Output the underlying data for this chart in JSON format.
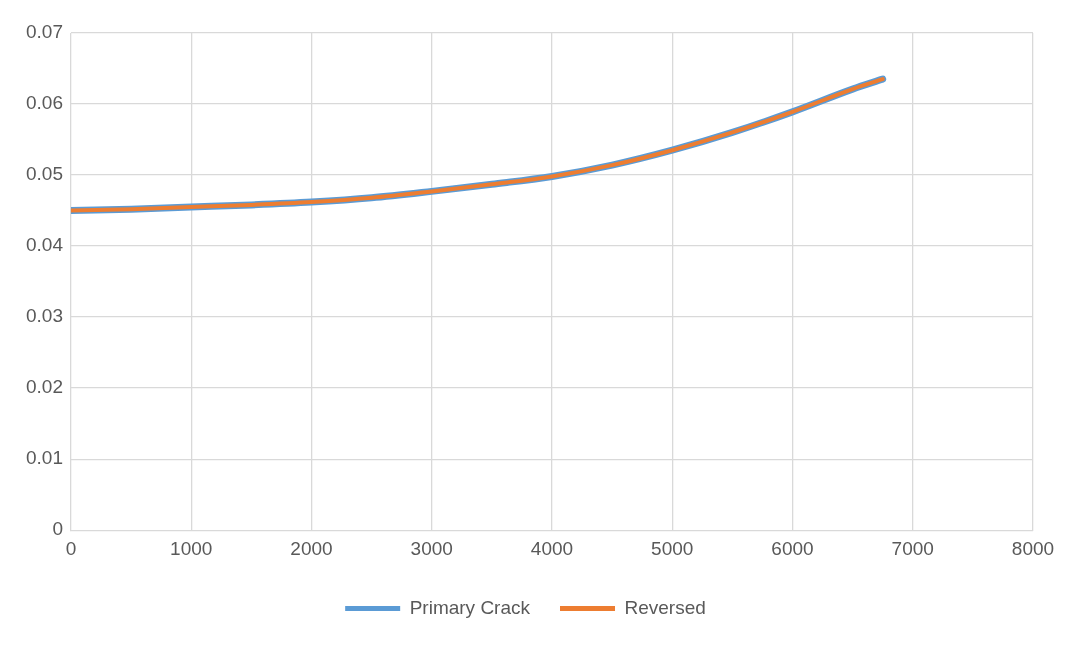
{
  "chart_data": {
    "type": "line",
    "x": [
      0,
      500,
      1000,
      1500,
      2000,
      2500,
      3000,
      3500,
      4000,
      4500,
      5000,
      5500,
      6000,
      6500,
      6750
    ],
    "series": [
      {
        "name": "Primary Crack",
        "color": "#5b9bd5",
        "values": [
          0.045,
          0.0452,
          0.0455,
          0.0458,
          0.0462,
          0.0468,
          0.0477,
          0.0487,
          0.0498,
          0.0514,
          0.0535,
          0.056,
          0.0589,
          0.0621,
          0.0635
        ]
      },
      {
        "name": "Reversed",
        "color": "#ed7d31",
        "values": [
          0.045,
          0.0452,
          0.0455,
          0.0458,
          0.0462,
          0.0468,
          0.0477,
          0.0487,
          0.0498,
          0.0514,
          0.0535,
          0.056,
          0.0589,
          0.0621,
          0.0635
        ]
      }
    ],
    "xlim": [
      0,
      8000
    ],
    "xticks": [
      0,
      1000,
      2000,
      3000,
      4000,
      5000,
      6000,
      7000,
      8000
    ],
    "ylim": [
      0,
      0.07
    ],
    "yticks": [
      0,
      0.01,
      0.02,
      0.03,
      0.04,
      0.05,
      0.06,
      0.07
    ],
    "grid": true,
    "legend": "bottom",
    "marker": "none",
    "line_style": "solid"
  }
}
